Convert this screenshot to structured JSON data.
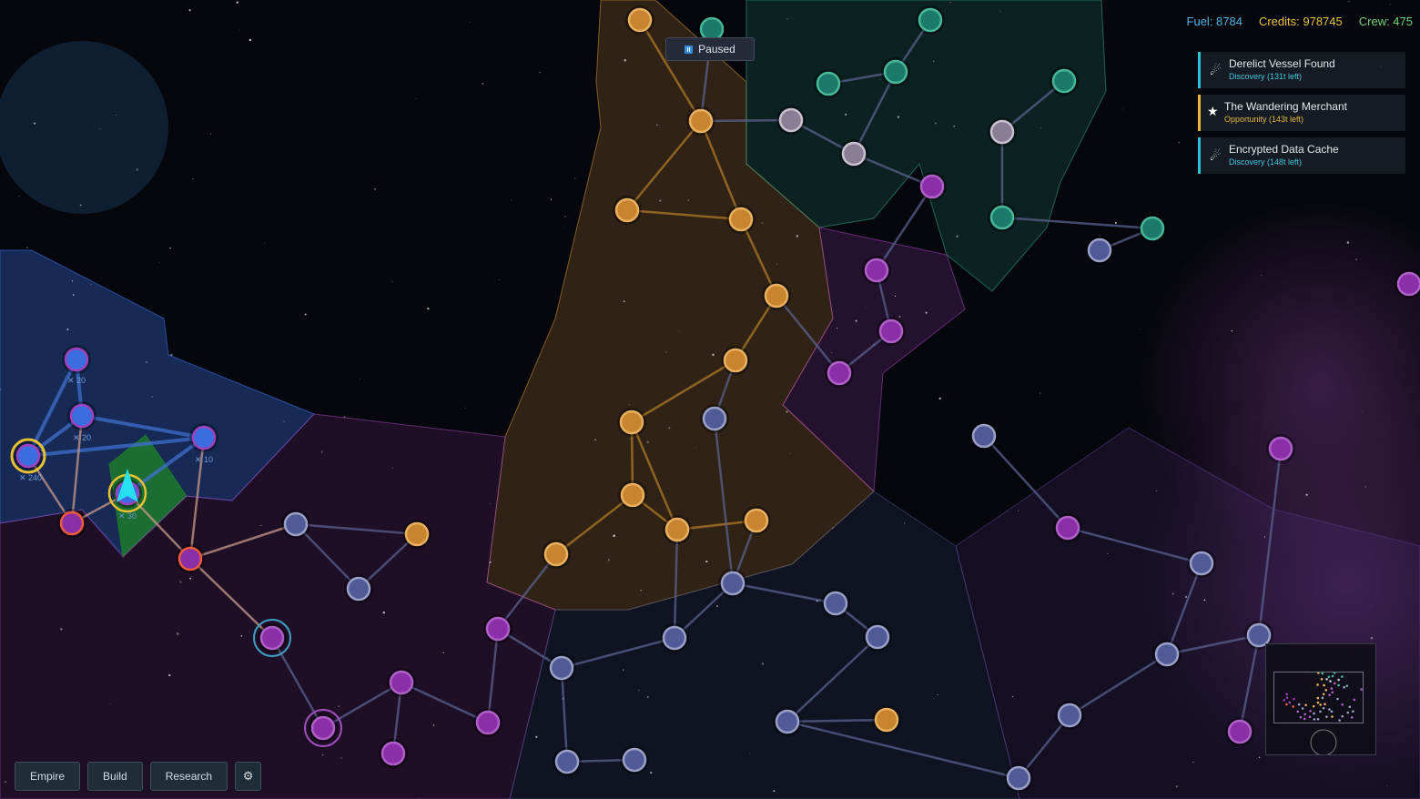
{
  "hud": {
    "fuel": "Fuel: 8784",
    "credits": "Credits: 978745",
    "crew": "Crew: 475",
    "colors": {
      "fuel": "#4fb3e6",
      "credits": "#e9c23c",
      "crew": "#6cd37a"
    }
  },
  "status": {
    "paused_label": "Paused",
    "icon": "pause-icon"
  },
  "events": [
    {
      "title": "Derelict Vessel Found",
      "subtitle": "Discovery (131t left)",
      "icon": "comet-icon",
      "type": "discovery"
    },
    {
      "title": "The Wandering Merchant",
      "subtitle": "Opportunity (143t left)",
      "icon": "star-icon",
      "type": "opportunity"
    },
    {
      "title": "Encrypted Data Cache",
      "subtitle": "Discovery (148t left)",
      "icon": "comet-icon",
      "type": "discovery"
    }
  ],
  "toolbar": {
    "empire": "Empire",
    "build": "Build",
    "research": "Research",
    "settings_icon": "gear-icon"
  },
  "fleet_labels": {
    "a": "20",
    "b": "20",
    "c": "240",
    "d": "10",
    "e": "30"
  },
  "faction_colors": {
    "player": "#3a6ee0",
    "orange": "#c88a32",
    "teal": "#2e9a7e",
    "purple": "#9a3fb0",
    "neutral": "#7a7fae"
  }
}
